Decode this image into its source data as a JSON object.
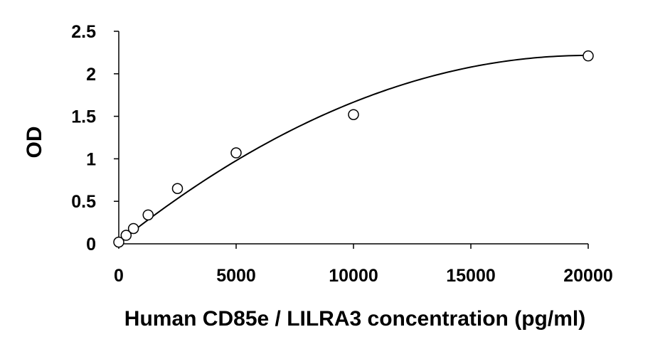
{
  "chart_data": {
    "type": "scatter",
    "title": "",
    "xlabel": "Human CD85e / LILRA3 concentration (pg/ml)",
    "ylabel": "OD",
    "xlim": [
      0,
      20000
    ],
    "ylim": [
      0,
      2.5
    ],
    "x_ticks": [
      0,
      5000,
      10000,
      15000,
      20000
    ],
    "x_tick_labels": [
      "0",
      "5000",
      "10000",
      "15000",
      "20000"
    ],
    "y_ticks": [
      0,
      0.5,
      1,
      1.5,
      2,
      2.5
    ],
    "y_tick_labels": [
      "0",
      "0.5",
      "1",
      "1.5",
      "2",
      "2.5"
    ],
    "grid": false,
    "legend": "none",
    "series": [
      {
        "marker": "open-circle",
        "points": [
          {
            "x": 0,
            "y": 0.02
          },
          {
            "x": 312.5,
            "y": 0.1
          },
          {
            "x": 625,
            "y": 0.18
          },
          {
            "x": 1250,
            "y": 0.34
          },
          {
            "x": 2500,
            "y": 0.65
          },
          {
            "x": 5000,
            "y": 1.07
          },
          {
            "x": 10000,
            "y": 1.52
          },
          {
            "x": 20000,
            "y": 2.21
          }
        ]
      }
    ],
    "trendline": {
      "type": "polynomial-2",
      "x_range": [
        0,
        20000
      ],
      "coefficients": [
        0.016,
        0.00022,
        -5.5e-09
      ]
    },
    "colors": {
      "axis": "#000000",
      "marker_stroke": "#000000",
      "marker_fill": "#ffffff",
      "trendline": "#000000"
    }
  }
}
